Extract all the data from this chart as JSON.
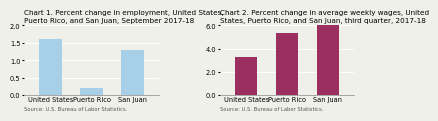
{
  "chart1": {
    "title": "Chart 1. Percent change in employment, United States,\nPuerto Rico, and San Juan, September 2017-18",
    "categories": [
      "United States",
      "Puerto Rico",
      "San Juan"
    ],
    "values": [
      1.6,
      0.2,
      1.3
    ],
    "bar_color": "#a8cfe8",
    "ylim": [
      0,
      2.0
    ],
    "yticks": [
      0.0,
      0.5,
      1.0,
      1.5,
      2.0
    ],
    "source": "Source: U.S. Bureau of Labor Statistics."
  },
  "chart2": {
    "title": "Chart 2. Percent change in average weekly wages, United\nStates, Puerto Rico, and San Juan, third quarter, 2017-18",
    "categories": [
      "United States",
      "Puerto Rico",
      "San Juan"
    ],
    "values": [
      3.3,
      5.3,
      6.0
    ],
    "bar_color": "#9b3060",
    "ylim": [
      0,
      6.0
    ],
    "yticks": [
      0.0,
      2.0,
      4.0,
      6.0
    ],
    "source": "Source: U.S. Bureau of Labor Statistics."
  },
  "background_color": "#f0f0eb",
  "title_fontsize": 5.2,
  "tick_fontsize": 4.8,
  "source_fontsize": 3.8
}
